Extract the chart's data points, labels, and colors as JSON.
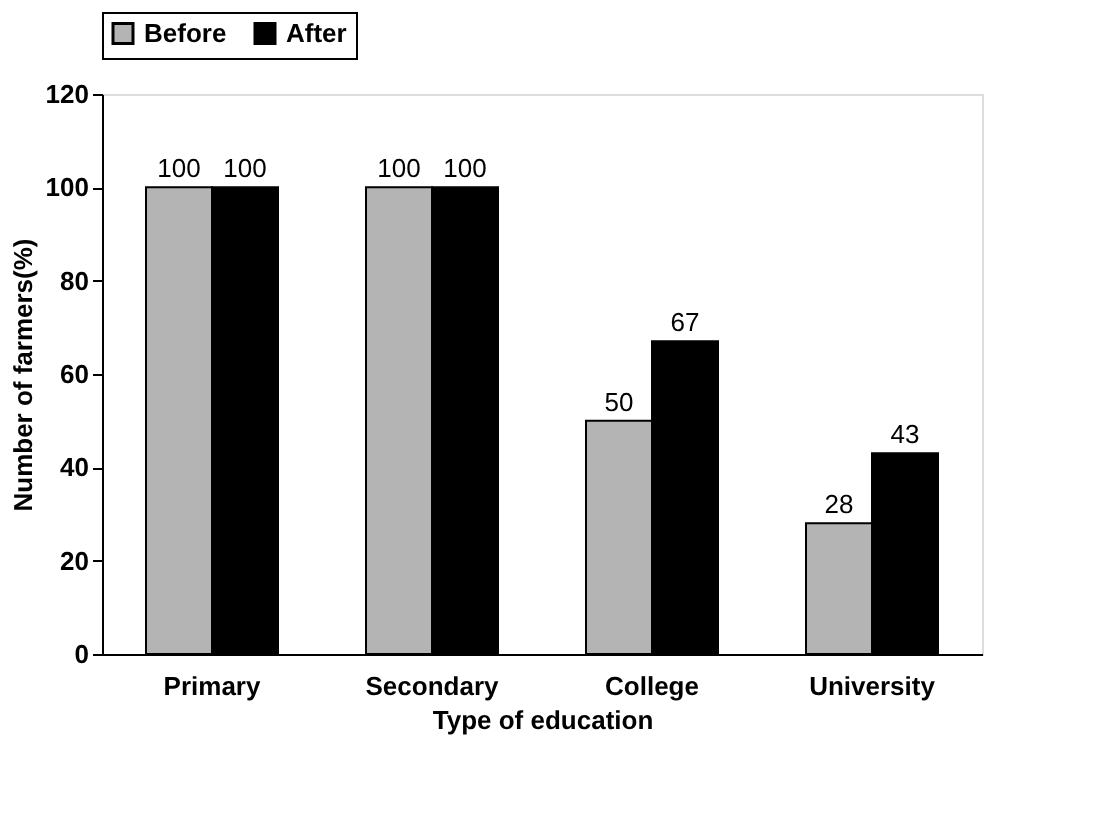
{
  "chart_data": {
    "type": "bar",
    "xlabel": "Type of education",
    "ylabel": "Number of farmers(%)",
    "categories": [
      "Primary",
      "Secondary",
      "College",
      "University"
    ],
    "series": [
      {
        "name": "Before",
        "color": "#b4b4b4",
        "values": [
          100,
          100,
          50,
          28
        ]
      },
      {
        "name": "After",
        "color": "#000000",
        "values": [
          100,
          100,
          67,
          43
        ]
      }
    ],
    "ylim": [
      0,
      120
    ],
    "yticks": [
      0,
      20,
      40,
      60,
      80,
      100,
      120
    ],
    "grid": false,
    "legend": "top",
    "data_labels": true
  }
}
